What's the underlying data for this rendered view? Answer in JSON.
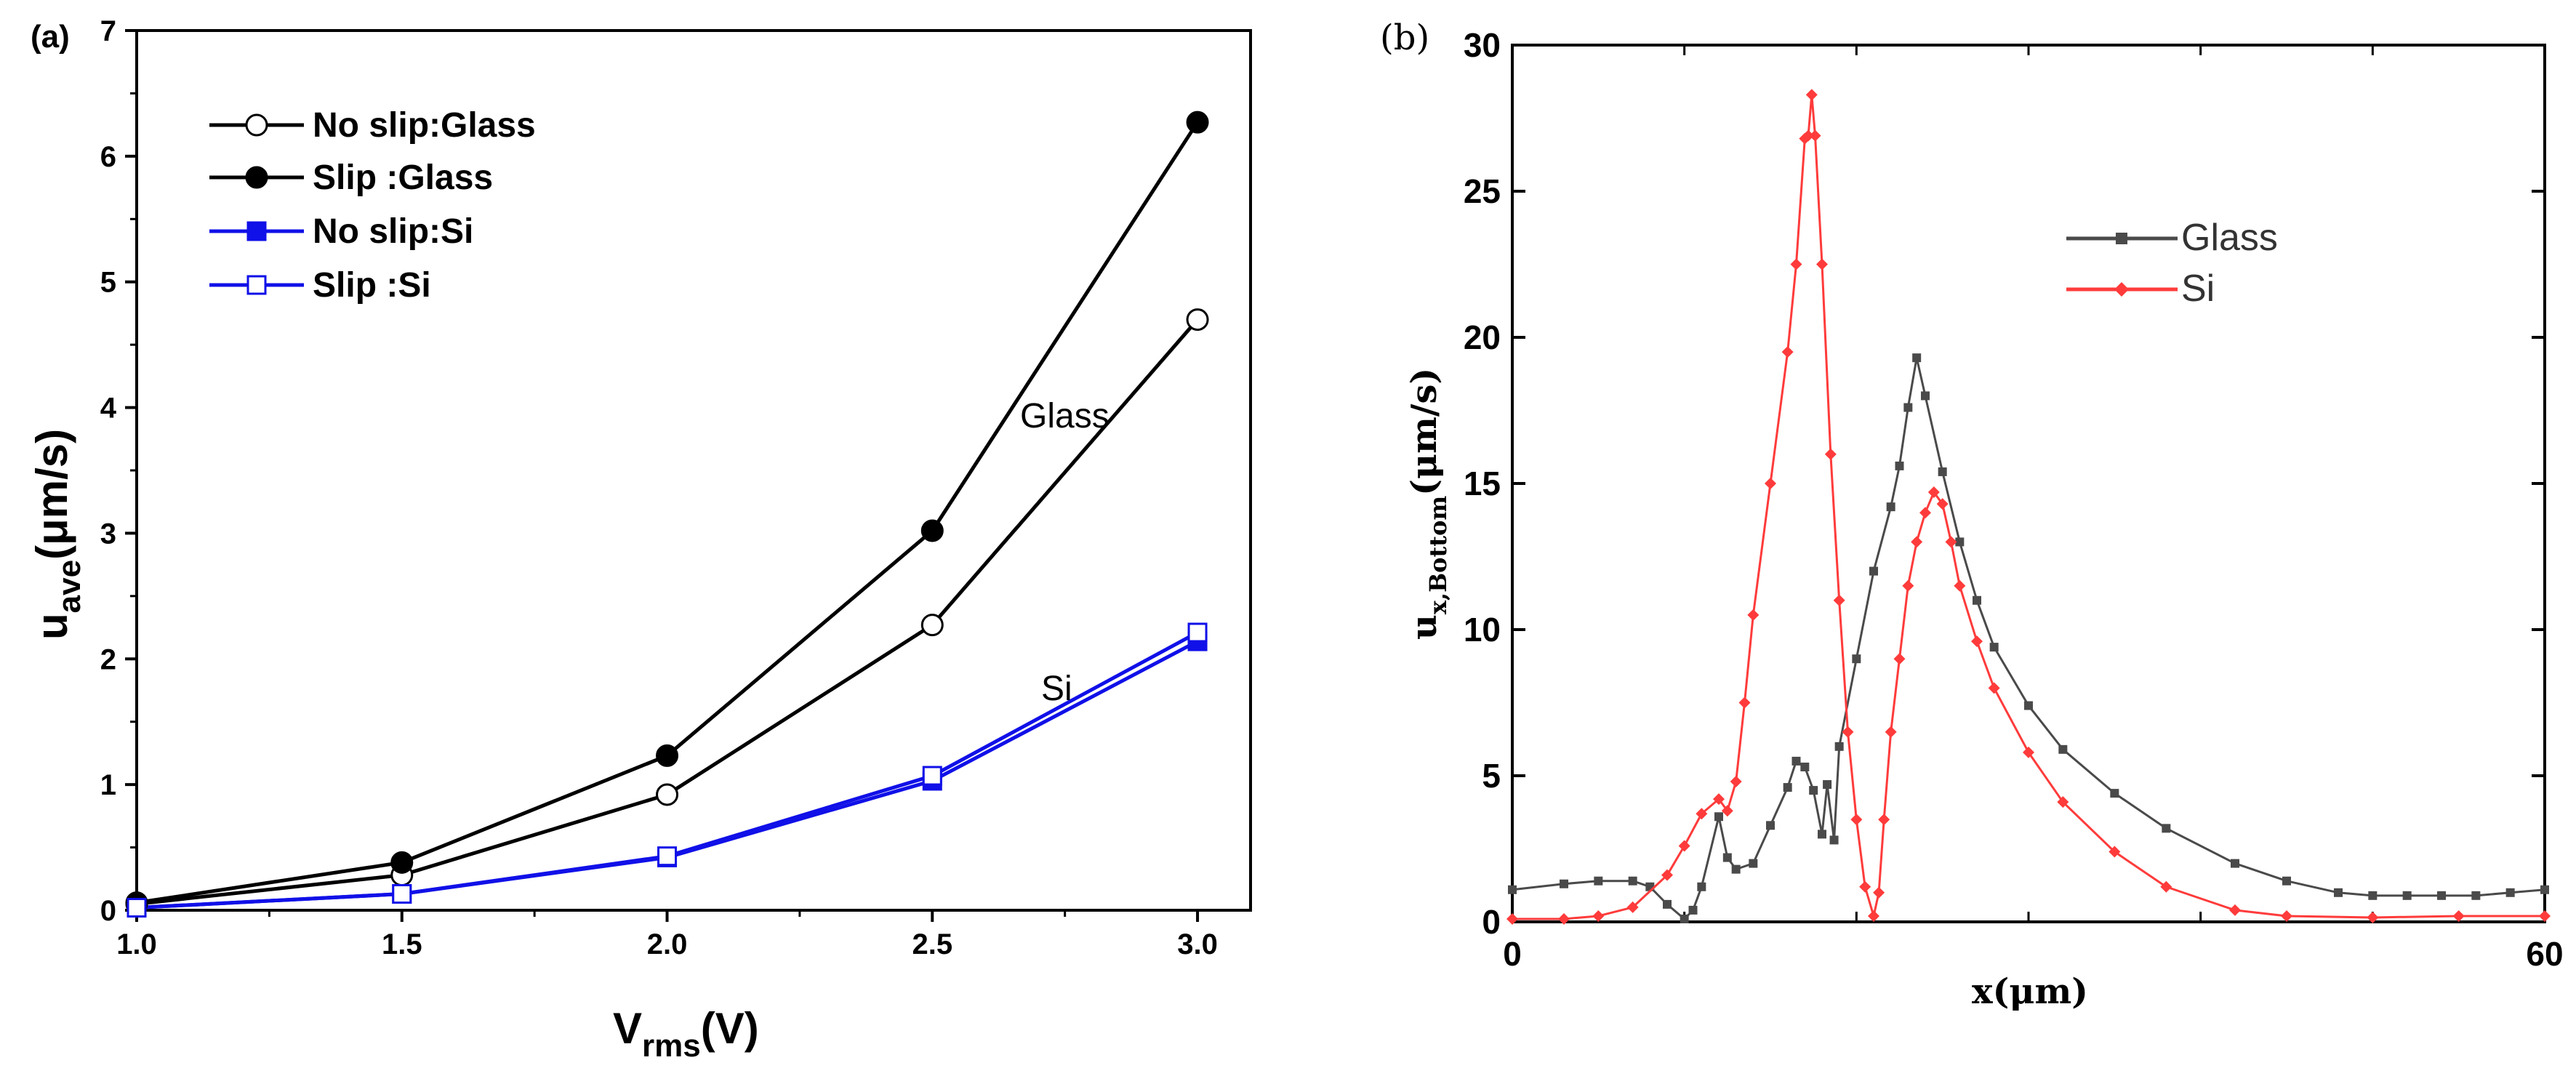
{
  "figure": {
    "panel_a_label": "(a)",
    "panel_b_label": "(b)"
  },
  "colors": {
    "black": "#000000",
    "blue": "#1010e8",
    "gray": "#4a4a4a",
    "red": "#ff3b3b"
  },
  "chart_data": [
    {
      "type": "line",
      "panel": "(a)",
      "title": "",
      "xlabel_main": "V",
      "xlabel_sub": "rms",
      "xlabel_tail": "(V)",
      "ylabel_main": "u",
      "ylabel_sub": "ave",
      "ylabel_tail": "(μm/s)",
      "xlim": [
        1.0,
        3.1
      ],
      "ylim": [
        0,
        7
      ],
      "xticks": [
        1.0,
        1.5,
        2.0,
        2.5,
        3.0
      ],
      "xtick_labels": [
        "1.0",
        "1.5",
        "2.0",
        "2.5",
        "3.0"
      ],
      "yticks": [
        0,
        1,
        2,
        3,
        4,
        5,
        6,
        7
      ],
      "ytick_labels": [
        "0",
        "1",
        "2",
        "3",
        "4",
        "5",
        "6",
        "7"
      ],
      "legend_position": "top-left",
      "series": [
        {
          "name": "No slip:Glass",
          "marker": "open-circle",
          "color": "#000000",
          "x": [
            1.0,
            1.5,
            2.0,
            2.5,
            3.0
          ],
          "y": [
            0.05,
            0.28,
            0.92,
            2.27,
            4.7
          ]
        },
        {
          "name": "Slip :Glass",
          "marker": "filled-circle",
          "color": "#000000",
          "x": [
            1.0,
            1.5,
            2.0,
            2.5,
            3.0
          ],
          "y": [
            0.06,
            0.38,
            1.23,
            3.02,
            6.27
          ]
        },
        {
          "name": "No slip:Si",
          "marker": "filled-square",
          "color": "#1010e8",
          "x": [
            1.0,
            1.5,
            2.0,
            2.5,
            3.0
          ],
          "y": [
            0.02,
            0.13,
            0.42,
            1.03,
            2.14
          ]
        },
        {
          "name": "Slip :Si",
          "marker": "open-square",
          "color": "#1010e8",
          "x": [
            1.0,
            1.5,
            2.0,
            2.5,
            3.0
          ],
          "y": [
            0.02,
            0.13,
            0.43,
            1.07,
            2.21
          ]
        }
      ],
      "annotations": [
        {
          "text": "Glass",
          "x": 2.66,
          "y": 3.95
        },
        {
          "text": "Si",
          "x": 2.69,
          "y": 1.67
        }
      ]
    },
    {
      "type": "line",
      "panel": "(b)",
      "title": "",
      "xlabel": "x(μm)",
      "ylabel_main": "u",
      "ylabel_sub": "x,Bottom",
      "ylabel_tail": "(μm/s)",
      "xlim": [
        0,
        60
      ],
      "ylim": [
        0,
        30
      ],
      "xticks": [
        0,
        60
      ],
      "xtick_labels": [
        "0",
        "60"
      ],
      "yticks": [
        0,
        5,
        10,
        15,
        20,
        25,
        30
      ],
      "ytick_labels": [
        "0",
        "5",
        "10",
        "15",
        "20",
        "25",
        "30"
      ],
      "legend_position": "top-right",
      "series": [
        {
          "name": "Glass",
          "color": "#4a4a4a",
          "marker": "small-square",
          "x": [
            0,
            3,
            5,
            7,
            8,
            9,
            10,
            10.5,
            11,
            12,
            12.5,
            13,
            14,
            15,
            16,
            16.5,
            17,
            17.5,
            18,
            18.3,
            18.7,
            19,
            20,
            21,
            22,
            22.5,
            23,
            23.5,
            24,
            25,
            26,
            27,
            28,
            30,
            32,
            35,
            38,
            42,
            45,
            48,
            50,
            52,
            54,
            56,
            58,
            60
          ],
          "y": [
            1.1,
            1.3,
            1.4,
            1.4,
            1.2,
            0.6,
            0.1,
            0.4,
            1.2,
            3.6,
            2.2,
            1.8,
            2.0,
            3.3,
            4.6,
            5.5,
            5.3,
            4.5,
            3.0,
            4.7,
            2.8,
            6.0,
            9.0,
            12.0,
            14.2,
            15.6,
            17.6,
            19.3,
            18.0,
            15.4,
            13.0,
            11.0,
            9.4,
            7.4,
            5.9,
            4.4,
            3.2,
            2.0,
            1.4,
            1.0,
            0.9,
            0.9,
            0.9,
            0.9,
            1.0,
            1.1
          ]
        },
        {
          "name": "Si",
          "color": "#ff3b3b",
          "marker": "small-diamond",
          "x": [
            0,
            3,
            5,
            7,
            9,
            10,
            11,
            12,
            12.5,
            13,
            13.5,
            14,
            15,
            16,
            16.5,
            17,
            17.2,
            17.4,
            17.6,
            18,
            18.5,
            19,
            19.5,
            20,
            20.5,
            21,
            21.3,
            21.6,
            22,
            22.5,
            23,
            23.5,
            24,
            24.5,
            25,
            25.5,
            26,
            27,
            28,
            30,
            32,
            35,
            38,
            42,
            45,
            50,
            55,
            60
          ],
          "y": [
            0.1,
            0.1,
            0.2,
            0.5,
            1.6,
            2.6,
            3.7,
            4.2,
            3.8,
            4.8,
            7.5,
            10.5,
            15.0,
            19.5,
            22.5,
            26.8,
            26.9,
            28.3,
            26.9,
            22.5,
            16.0,
            11.0,
            6.5,
            3.5,
            1.2,
            0.2,
            1.0,
            3.5,
            6.5,
            9.0,
            11.5,
            13.0,
            14.0,
            14.7,
            14.3,
            13.0,
            11.5,
            9.6,
            8.0,
            5.8,
            4.1,
            2.4,
            1.2,
            0.4,
            0.2,
            0.15,
            0.2,
            0.2
          ]
        }
      ]
    }
  ]
}
